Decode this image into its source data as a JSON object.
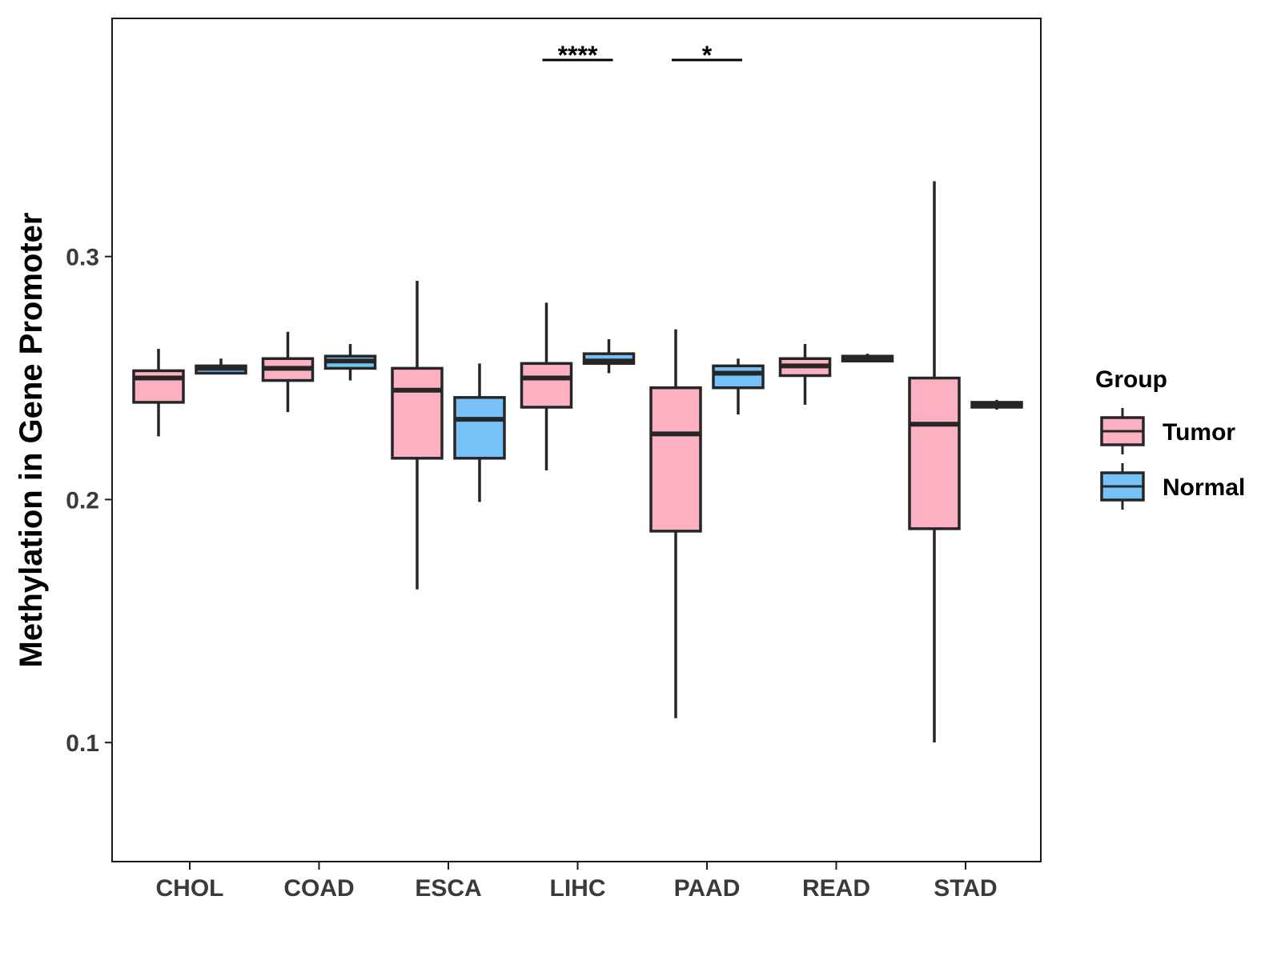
{
  "chart_data": {
    "type": "boxplot",
    "title": "",
    "xlabel": "",
    "ylabel": "Methylation in Gene Promoter",
    "ylim": [
      0.051,
      0.398
    ],
    "yticks": [
      0.1,
      0.2,
      0.3
    ],
    "ytick_labels": [
      "0.1",
      "0.2",
      "0.3"
    ],
    "grid": false,
    "legend_position": "right",
    "legend_title": "Group",
    "categories": [
      "CHOL",
      "COAD",
      "ESCA",
      "LIHC",
      "PAAD",
      "READ",
      "STAD"
    ],
    "series": [
      {
        "name": "Tumor",
        "color": "#FBB1C2",
        "boxes": [
          {
            "min": 0.226,
            "q1": 0.24,
            "median": 0.25,
            "q3": 0.253,
            "max": 0.262
          },
          {
            "min": 0.236,
            "q1": 0.249,
            "median": 0.254,
            "q3": 0.258,
            "max": 0.269
          },
          {
            "min": 0.163,
            "q1": 0.217,
            "median": 0.245,
            "q3": 0.254,
            "max": 0.29
          },
          {
            "min": 0.212,
            "q1": 0.238,
            "median": 0.25,
            "q3": 0.256,
            "max": 0.281
          },
          {
            "min": 0.11,
            "q1": 0.187,
            "median": 0.227,
            "q3": 0.246,
            "max": 0.27
          },
          {
            "min": 0.239,
            "q1": 0.251,
            "median": 0.255,
            "q3": 0.258,
            "max": 0.264
          },
          {
            "min": 0.1,
            "q1": 0.188,
            "median": 0.231,
            "q3": 0.25,
            "max": 0.331
          }
        ]
      },
      {
        "name": "Normal",
        "color": "#76C2F8",
        "boxes": [
          {
            "min": 0.252,
            "q1": 0.252,
            "median": 0.254,
            "q3": 0.255,
            "max": 0.258
          },
          {
            "min": 0.249,
            "q1": 0.254,
            "median": 0.257,
            "q3": 0.259,
            "max": 0.264
          },
          {
            "min": 0.199,
            "q1": 0.217,
            "median": 0.233,
            "q3": 0.242,
            "max": 0.256
          },
          {
            "min": 0.252,
            "q1": 0.256,
            "median": 0.257,
            "q3": 0.26,
            "max": 0.266
          },
          {
            "min": 0.235,
            "q1": 0.246,
            "median": 0.252,
            "q3": 0.255,
            "max": 0.258
          },
          {
            "min": 0.257,
            "q1": 0.257,
            "median": 0.258,
            "q3": 0.259,
            "max": 0.26
          },
          {
            "min": 0.237,
            "q1": 0.238,
            "median": 0.239,
            "q3": 0.24,
            "max": 0.241
          }
        ]
      }
    ],
    "annotations": [
      {
        "category": "LIHC",
        "label": "****"
      },
      {
        "category": "PAAD",
        "label": "*"
      }
    ]
  }
}
